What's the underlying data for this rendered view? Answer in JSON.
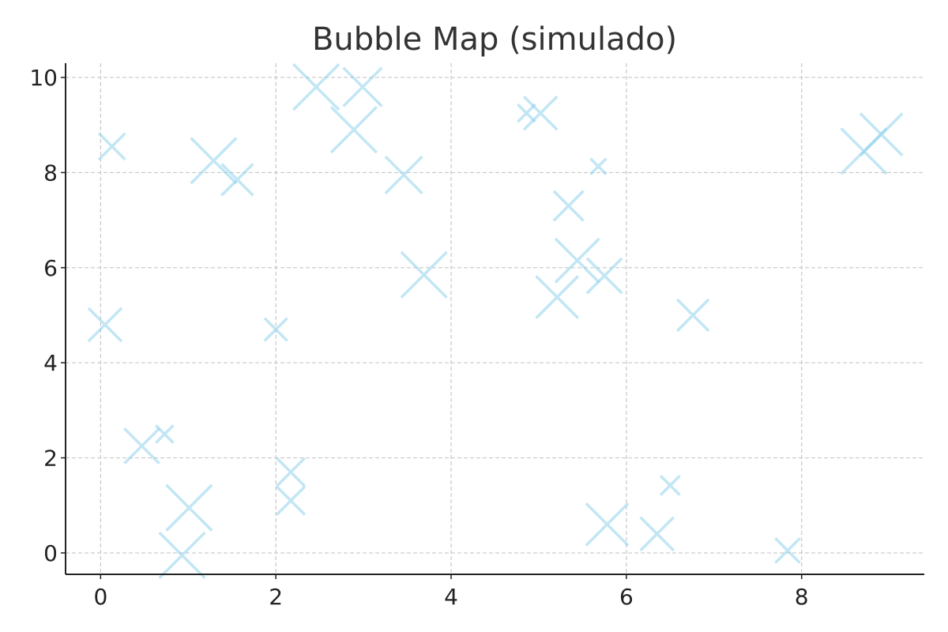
{
  "chart_data": {
    "type": "scatter",
    "title": "Bubble Map (simulado)",
    "xlabel": "",
    "ylabel": "",
    "xlim": [
      -0.4,
      9.4
    ],
    "ylim": [
      -0.45,
      10.3
    ],
    "xticks": [
      0,
      2,
      4,
      6,
      8
    ],
    "yticks": [
      0,
      2,
      4,
      6,
      8,
      10
    ],
    "grid": true,
    "marker": "x",
    "color": "#87CEEB",
    "opacity": 0.5,
    "series": [
      {
        "points": [
          {
            "x": 0.13,
            "y": 8.55,
            "size": 0.15
          },
          {
            "x": 1.29,
            "y": 8.25,
            "size": 0.26
          },
          {
            "x": 1.56,
            "y": 7.85,
            "size": 0.18
          },
          {
            "x": 2.46,
            "y": 9.8,
            "size": 0.26
          },
          {
            "x": 2.99,
            "y": 9.8,
            "size": 0.22
          },
          {
            "x": 2.89,
            "y": 8.9,
            "size": 0.26
          },
          {
            "x": 3.46,
            "y": 7.95,
            "size": 0.21
          },
          {
            "x": 4.86,
            "y": 9.25,
            "size": 0.1
          },
          {
            "x": 5.02,
            "y": 9.25,
            "size": 0.19
          },
          {
            "x": 5.68,
            "y": 8.13,
            "size": 0.09
          },
          {
            "x": 5.34,
            "y": 7.3,
            "size": 0.17
          },
          {
            "x": 5.44,
            "y": 6.15,
            "size": 0.25
          },
          {
            "x": 5.75,
            "y": 5.83,
            "size": 0.2
          },
          {
            "x": 5.21,
            "y": 5.38,
            "size": 0.24
          },
          {
            "x": 3.69,
            "y": 5.85,
            "size": 0.26
          },
          {
            "x": 6.76,
            "y": 5.0,
            "size": 0.18
          },
          {
            "x": 0.05,
            "y": 4.8,
            "size": 0.19
          },
          {
            "x": 2.0,
            "y": 4.7,
            "size": 0.13
          },
          {
            "x": 0.47,
            "y": 2.25,
            "size": 0.2
          },
          {
            "x": 0.73,
            "y": 2.5,
            "size": 0.1
          },
          {
            "x": 2.17,
            "y": 1.7,
            "size": 0.16
          },
          {
            "x": 2.17,
            "y": 1.1,
            "size": 0.16
          },
          {
            "x": 1.01,
            "y": 0.95,
            "size": 0.26
          },
          {
            "x": 0.93,
            "y": -0.05,
            "size": 0.26
          },
          {
            "x": 5.78,
            "y": 0.6,
            "size": 0.24
          },
          {
            "x": 6.35,
            "y": 0.4,
            "size": 0.19
          },
          {
            "x": 6.5,
            "y": 1.42,
            "size": 0.11
          },
          {
            "x": 7.84,
            "y": 0.05,
            "size": 0.14
          },
          {
            "x": 8.71,
            "y": 8.45,
            "size": 0.26
          },
          {
            "x": 8.91,
            "y": 8.8,
            "size": 0.24
          }
        ]
      }
    ]
  }
}
